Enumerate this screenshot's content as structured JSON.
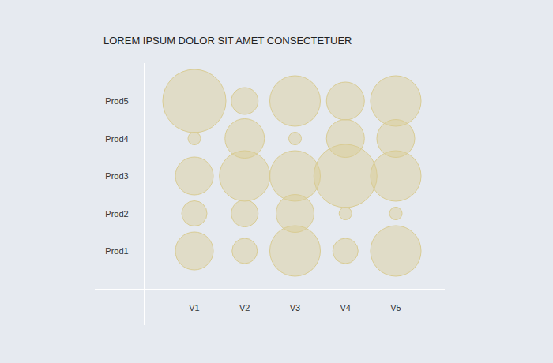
{
  "chart_data": {
    "type": "bubble",
    "title": "LOREM IPSUM DOLOR SIT AMET CONSECTETUER",
    "categories": [
      "V1",
      "V2",
      "V3",
      "V4",
      "V5"
    ],
    "rows": [
      "Prod1",
      "Prod2",
      "Prod3",
      "Prod4",
      "Prod5"
    ],
    "sizes": [
      [
        36,
        16,
        64,
        16,
        64
      ],
      [
        16,
        18,
        36,
        4,
        4
      ],
      [
        36,
        64,
        64,
        100,
        64
      ],
      [
        4,
        39,
        4,
        36,
        36
      ],
      [
        100,
        18,
        64,
        36,
        64
      ]
    ],
    "color": "#d9cc94",
    "tick_labels": true
  }
}
